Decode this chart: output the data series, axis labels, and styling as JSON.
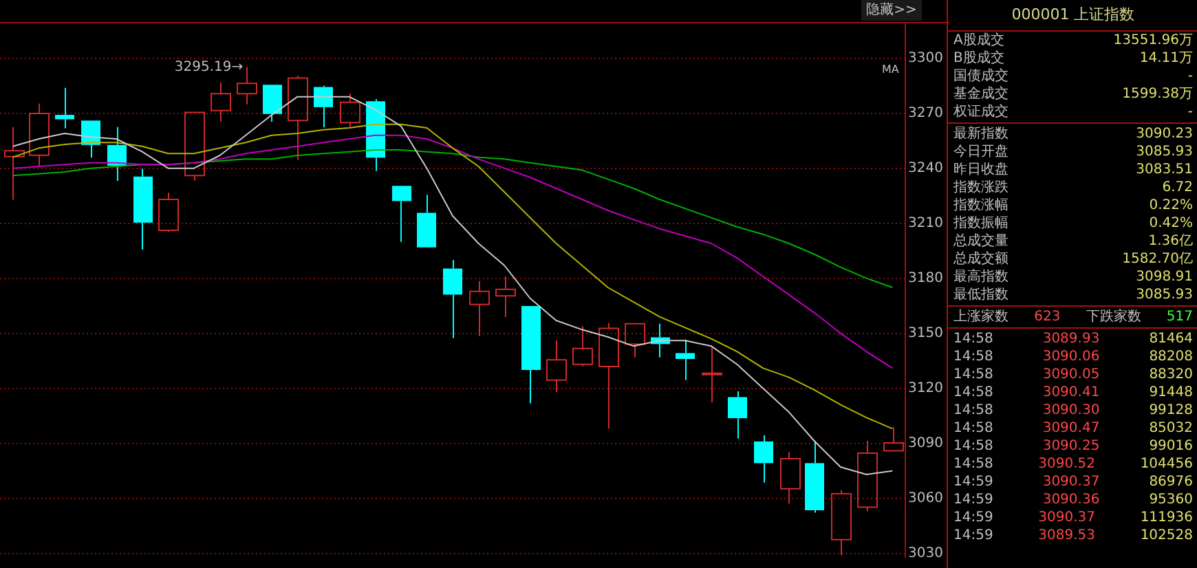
{
  "chart_data": [
    {
      "type": "candlestick",
      "categories": [
        null,
        null,
        null,
        null,
        null,
        null,
        null,
        null,
        null,
        null,
        null,
        null,
        null,
        null,
        null,
        null,
        null,
        null,
        null,
        null,
        null,
        null,
        null,
        null,
        null,
        null,
        null,
        null,
        null,
        null,
        null,
        null,
        null,
        null,
        null
      ],
      "ohlc": [
        [
          3246.3,
          3262.5,
          3222.8,
          3249.5
        ],
        [
          3247.1,
          3275.2,
          3241.0,
          3269.9
        ],
        [
          3269.1,
          3283.8,
          3261.8,
          3266.7
        ],
        [
          3266.0,
          3266.0,
          3245.8,
          3252.7
        ],
        [
          3252.7,
          3262.5,
          3233.1,
          3241.4
        ],
        [
          3235.5,
          3239.7,
          3195.6,
          3210.3
        ],
        [
          3206.1,
          3226.7,
          3205.4,
          3223.0
        ],
        [
          3236.0,
          3270.4,
          3233.1,
          3270.4
        ],
        [
          3271.5,
          3286.8,
          3265.4,
          3280.7
        ],
        [
          3280.7,
          3295.19,
          3274.8,
          3286.3
        ],
        [
          3285.5,
          3285.5,
          3265.4,
          3269.6
        ],
        [
          3266.0,
          3290.4,
          3244.6,
          3289.2
        ],
        [
          3284.3,
          3285.1,
          3262.3,
          3273.3
        ],
        [
          3264.9,
          3280.7,
          3262.5,
          3276.0
        ],
        [
          3276.5,
          3277.7,
          3238.5,
          3245.8
        ],
        [
          3230.4,
          3230.4,
          3199.8,
          3222.1
        ],
        [
          3215.7,
          3225.5,
          3196.8,
          3196.8
        ],
        [
          3185.3,
          3190.0,
          3147.3,
          3171.1
        ],
        [
          3165.7,
          3178.5,
          3148.5,
          3172.8
        ],
        [
          3170.4,
          3180.9,
          3158.8,
          3174.0
        ],
        [
          3164.9,
          3164.9,
          3111.8,
          3130.0
        ],
        [
          3124.5,
          3146.1,
          3117.9,
          3135.5
        ],
        [
          3133.1,
          3153.9,
          3131.9,
          3141.7
        ],
        [
          3131.9,
          3155.7,
          3098.0,
          3152.7
        ],
        [
          3144.1,
          3155.2,
          3136.8,
          3155.2
        ],
        [
          3147.8,
          3155.2,
          3136.8,
          3144.1
        ],
        [
          3139.2,
          3146.6,
          3124.5,
          3136.0
        ],
        [
          3127.8,
          3142.8,
          3112.3,
          3128.2
        ],
        [
          3115.2,
          3118.4,
          3092.6,
          3103.7
        ],
        [
          3091.0,
          3094.4,
          3068.6,
          3079.2
        ],
        [
          3065.2,
          3085.3,
          3057.1,
          3081.6
        ],
        [
          3079.2,
          3091.4,
          3052.2,
          3053.5
        ],
        [
          3037.5,
          3064.5,
          3029.0,
          3062.5
        ],
        [
          3055.2,
          3091.4,
          3053.0,
          3084.6
        ],
        [
          3085.93,
          3098.91,
          3085.93,
          3090.23
        ]
      ],
      "colors": [
        "#d02828",
        "#d02828",
        "#00ffff",
        "#00ffff",
        "#00ffff",
        "#00ffff",
        "#d02828",
        "#d02828",
        "#d02828",
        "#d02828",
        "#00ffff",
        "#d02828",
        "#00ffff",
        "#d02828",
        "#00ffff",
        "#00ffff",
        "#00ffff",
        "#00ffff",
        "#d02828",
        "#d02828",
        "#00ffff",
        "#d02828",
        "#d02828",
        "#d02828",
        "#d02828",
        "#00ffff",
        "#00ffff",
        "#d02828",
        "#00ffff",
        "#00ffff",
        "#d02828",
        "#00ffff",
        "#d02828",
        "#d02828",
        "#d02828"
      ],
      "series": [
        {
          "type": "line",
          "color": "#c8c8c8",
          "values": [
            3252,
            3256,
            3259,
            3257,
            3256,
            3249,
            3240,
            3240,
            3247,
            3258,
            3269,
            3279,
            3279,
            3279,
            3272,
            3263,
            3240,
            3214,
            3199,
            3187,
            3169,
            3157,
            3152,
            3148,
            3143,
            3146,
            3146,
            3143,
            3133,
            3120,
            3107,
            3091,
            3077,
            3073,
            3075
          ]
        },
        {
          "type": "line",
          "color": "#b4b400",
          "values": [
            3246,
            3251,
            3253,
            3254,
            3254,
            3252,
            3248,
            3248,
            3251,
            3254,
            3258,
            3259,
            3261,
            3262,
            3264,
            3264,
            3262,
            3251,
            3241,
            3227,
            3213,
            3199,
            3187,
            3175,
            3167,
            3159,
            3153,
            3147,
            3140,
            3131,
            3126,
            3119,
            3111,
            3104,
            3098
          ]
        },
        {
          "type": "line",
          "color": "#c000c0",
          "values": [
            3240,
            3241,
            3242,
            3243,
            3243,
            3242,
            3242,
            3243,
            3245,
            3248,
            3250,
            3252,
            3254,
            3256,
            3258,
            3258,
            3256,
            3251,
            3245,
            3240,
            3235,
            3229,
            3223,
            3217,
            3212,
            3207,
            3203,
            3199,
            3191,
            3181,
            3171,
            3161,
            3150,
            3140,
            3131
          ]
        },
        {
          "type": "line",
          "color": "#00b000",
          "values": [
            3236,
            3237,
            3238,
            3240,
            3241,
            3242,
            3242,
            3243,
            3244,
            3245,
            3245,
            3247,
            3248,
            3249,
            3250,
            3250,
            3249,
            3248,
            3246,
            3245,
            3243,
            3241,
            3239,
            3234,
            3229,
            3223,
            3218,
            3213,
            3208,
            3204,
            3199,
            3193,
            3186,
            3180,
            3175
          ]
        }
      ],
      "ylim": [
        3028,
        3319
      ],
      "yticks": [
        3030,
        3060,
        3090,
        3120,
        3150,
        3180,
        3210,
        3240,
        3270,
        3300
      ],
      "grid": "y",
      "legend": false,
      "marker": "none",
      "line_style": "solid",
      "annotations": [
        "隐藏>>",
        "MA",
        "3295.19→"
      ]
    },
    {
      "type": "other",
      "title": "000001  上证指数",
      "annotations": [
        "A股成交",
        "13551.96万",
        "B股成交",
        "14.11万",
        "国债成交",
        "-",
        "基金成交",
        "1599.38万",
        "权证成交",
        "-",
        "最新指数",
        "3090.23",
        "今日开盘",
        "3085.93",
        "昨日收盘",
        "3083.51",
        "指数涨跌",
        "6.72",
        "指数涨幅",
        "0.22%",
        "指数振幅",
        "0.42%",
        "总成交量",
        "1.36亿",
        "总成交额",
        "1582.70亿",
        "最高指数",
        "3098.91",
        "最低指数",
        "3085.93",
        "上涨家数",
        "623",
        "下跌家数",
        "517",
        "14:58",
        "3089.93",
        "81464",
        "14:58",
        "3090.06",
        "88208",
        "14:58",
        "3090.05",
        "88320",
        "14:58",
        "3090.41",
        "91448",
        "14:58",
        "3090.30",
        "99128",
        "14:58",
        "3090.47",
        "85032",
        "14:58",
        "3090.25",
        "99016",
        "14:58",
        "3090.52",
        "104456",
        "14:59",
        "3090.37",
        "86976",
        "14:59",
        "3090.36",
        "95360",
        "14:59",
        "3090.37",
        "111936",
        "14:59",
        "3089.53",
        "102528"
      ]
    }
  ]
}
